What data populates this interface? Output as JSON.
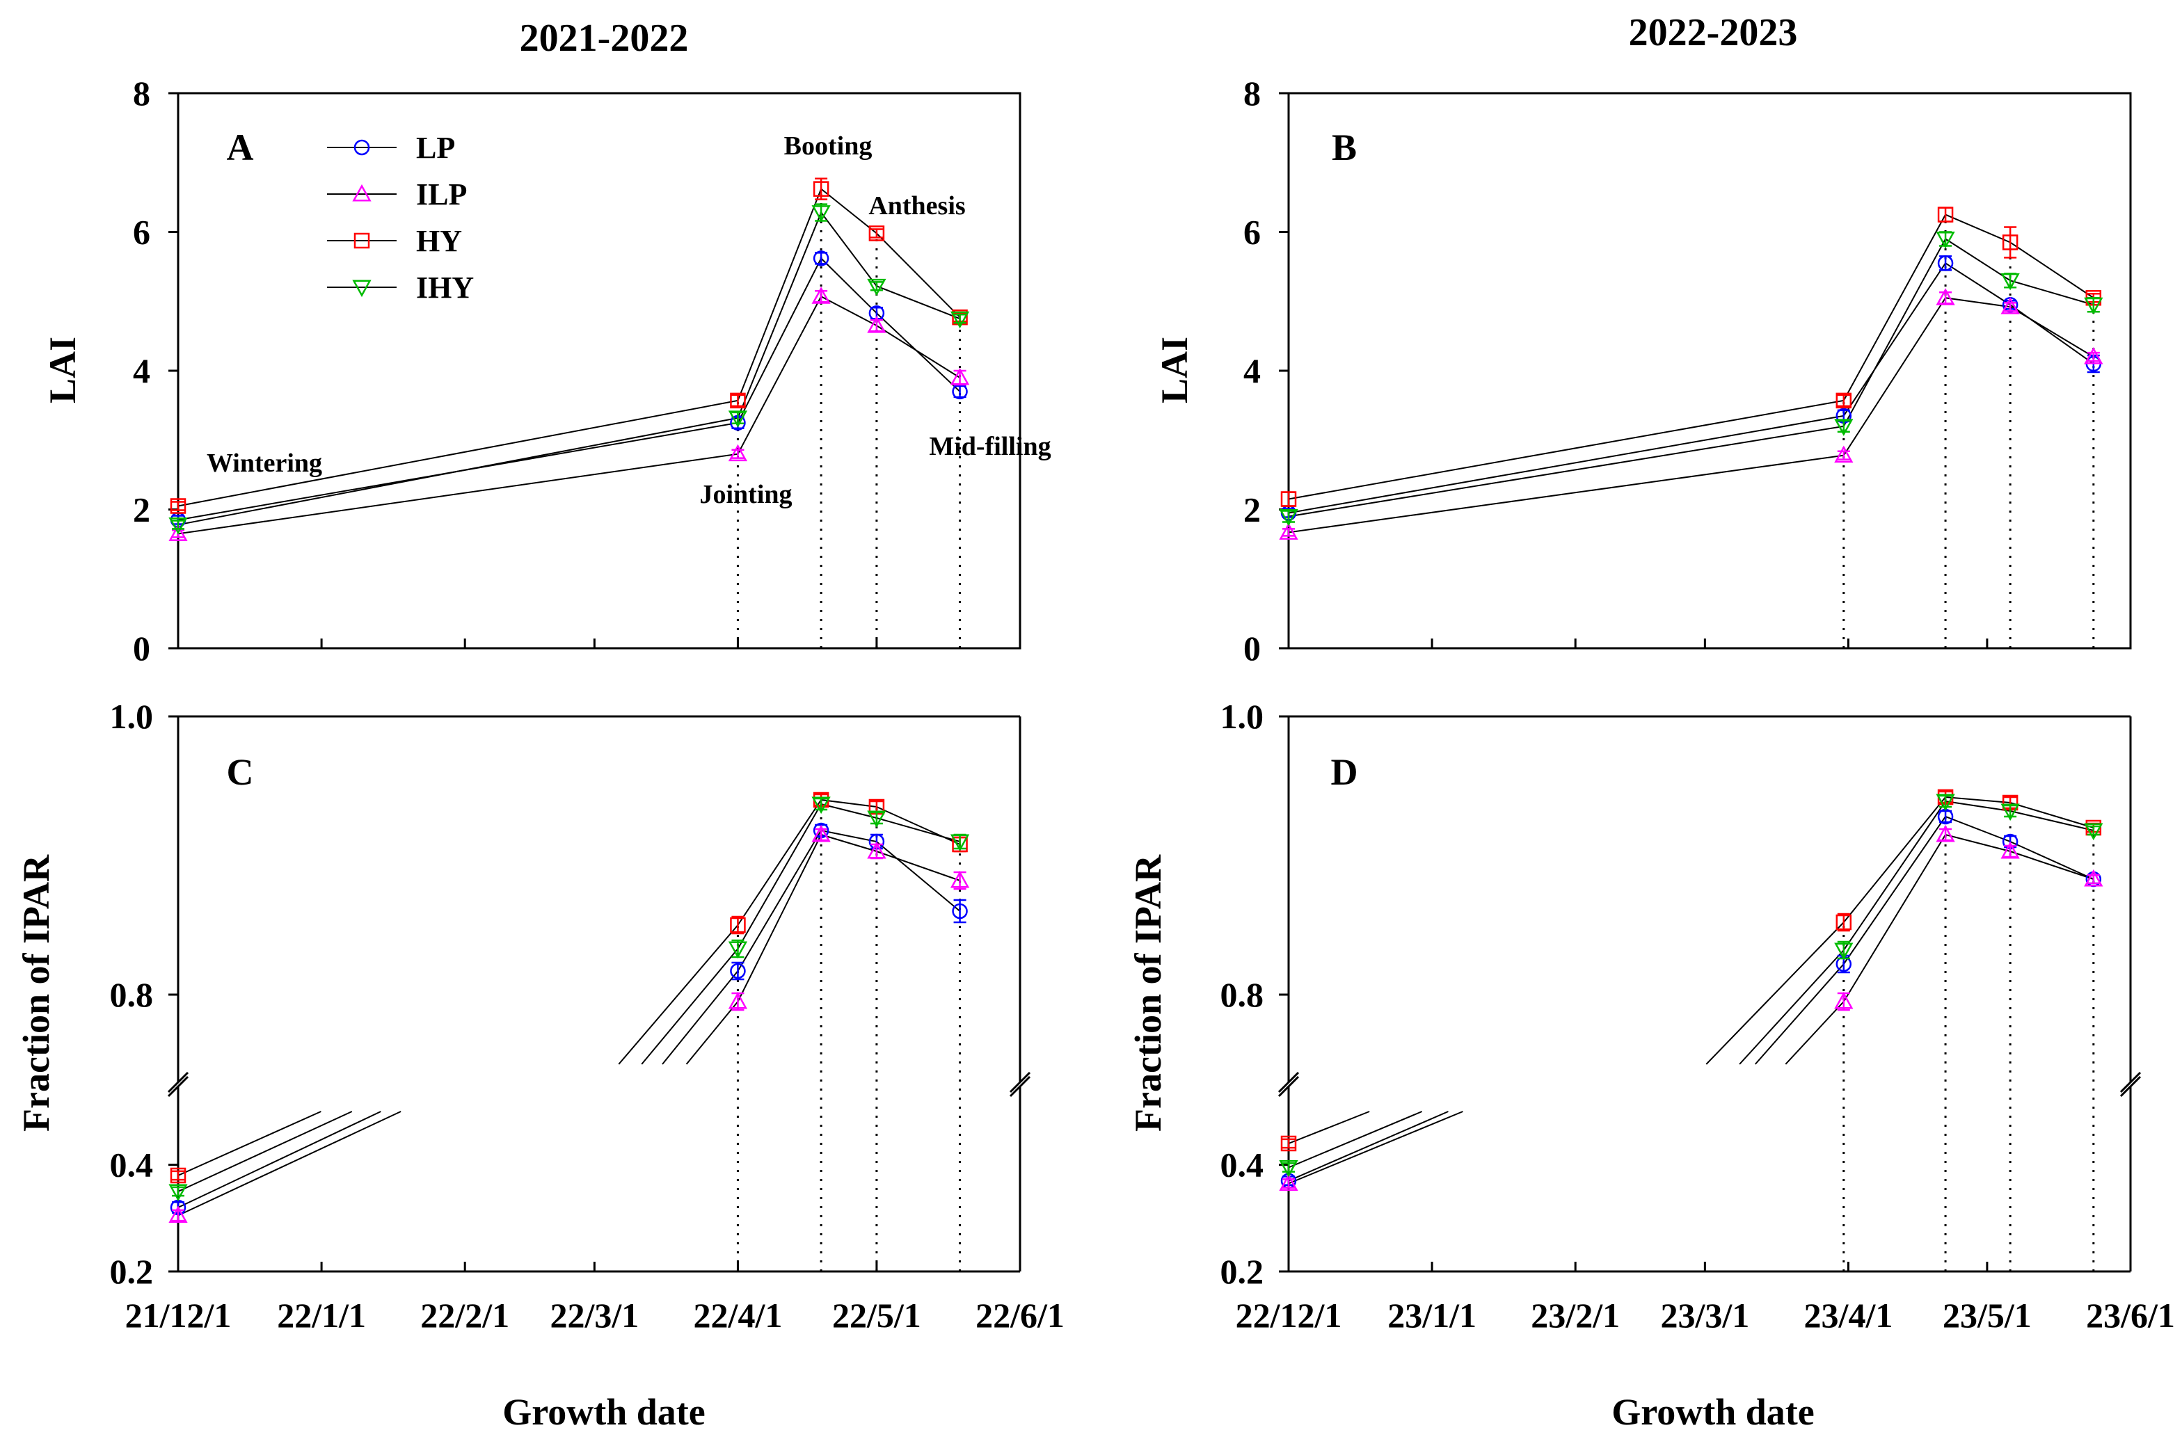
{
  "figure": {
    "titles": [
      "2021-2022",
      "2022-2023"
    ],
    "xlabel": "Growth date",
    "y_top_label": "LAI",
    "y_bottom_label": "Fraction of IPAR"
  },
  "legend": [
    {
      "name": "LP",
      "color": "#0000ff",
      "marker": "circle"
    },
    {
      "name": "ILP",
      "color": "#ff00ff",
      "marker": "triangle-up"
    },
    {
      "name": "HY",
      "color": "#ff0000",
      "marker": "square"
    },
    {
      "name": "IHY",
      "color": "#00bb00",
      "marker": "triangle-down"
    }
  ],
  "chart_data": [
    {
      "panel": "A",
      "type": "line",
      "season": "2021-2022",
      "ylabel": "LAI",
      "ylim": [
        0,
        8
      ],
      "yticks": [
        0,
        2,
        4,
        6,
        8
      ],
      "xlim": [
        "2021-12-01",
        "2022-06-01"
      ],
      "xticks": [
        "2021-12-01",
        "2022-01-01",
        "2022-02-01",
        "2022-03-01",
        "2022-04-01",
        "2022-05-01",
        "2022-06-01"
      ],
      "xticklabels": [
        "21/12/1",
        "22/1/1",
        "22/2/1",
        "22/3/1",
        "22/4/1",
        "22/5/1",
        "22/6/1"
      ],
      "x": [
        "2021-12-01",
        "2022-04-01",
        "2022-04-19",
        "2022-05-01",
        "2022-05-19"
      ],
      "annotations": [
        {
          "text": "Wintering",
          "x": "2021-12-01"
        },
        {
          "text": "Jointing",
          "x": "2022-04-01"
        },
        {
          "text": "Booting",
          "x": "2022-04-19"
        },
        {
          "text": "Anthesis",
          "x": "2022-05-01"
        },
        {
          "text": "Mid-filling",
          "x": "2022-05-19"
        }
      ],
      "series": [
        {
          "name": "LP",
          "values": [
            1.85,
            3.25,
            5.62,
            4.83,
            3.7
          ],
          "errors": [
            0.06,
            0.08,
            0.08,
            0.08,
            0.08
          ]
        },
        {
          "name": "ILP",
          "values": [
            1.65,
            2.8,
            5.07,
            4.65,
            3.9
          ],
          "errors": [
            0.05,
            0.06,
            0.08,
            0.08,
            0.1
          ]
        },
        {
          "name": "HY",
          "values": [
            2.05,
            3.57,
            6.62,
            5.98,
            4.77
          ],
          "errors": [
            0.06,
            0.08,
            0.15,
            0.06,
            0.06
          ]
        },
        {
          "name": "IHY",
          "values": [
            1.78,
            3.32,
            6.28,
            5.22,
            4.75
          ],
          "errors": [
            0.06,
            0.08,
            0.12,
            0.06,
            0.06
          ]
        }
      ]
    },
    {
      "panel": "B",
      "type": "line",
      "season": "2022-2023",
      "ylabel": "LAI",
      "ylim": [
        0,
        8
      ],
      "yticks": [
        0,
        2,
        4,
        6,
        8
      ],
      "xlim": [
        "2022-12-01",
        "2023-06-01"
      ],
      "xticks": [
        "2022-12-01",
        "2023-01-01",
        "2023-02-01",
        "2023-03-01",
        "2023-04-01",
        "2023-05-01",
        "2023-06-01"
      ],
      "xticklabels": [
        "22/12/1",
        "23/1/1",
        "23/2/1",
        "23/3/1",
        "23/4/1",
        "23/5/1",
        "23/6/1"
      ],
      "x": [
        "2022-12-01",
        "2023-03-31",
        "2023-04-22",
        "2023-05-06",
        "2023-05-24"
      ],
      "series": [
        {
          "name": "LP",
          "values": [
            1.95,
            3.35,
            5.55,
            4.95,
            4.1
          ],
          "errors": [
            0.06,
            0.08,
            0.1,
            0.06,
            0.12
          ]
        },
        {
          "name": "ILP",
          "values": [
            1.67,
            2.78,
            5.05,
            4.92,
            4.2
          ],
          "errors": [
            0.05,
            0.06,
            0.08,
            0.06,
            0.06
          ]
        },
        {
          "name": "HY",
          "values": [
            2.15,
            3.57,
            6.25,
            5.85,
            5.05
          ],
          "errors": [
            0.1,
            0.08,
            0.1,
            0.22,
            0.06
          ]
        },
        {
          "name": "IHY",
          "values": [
            1.9,
            3.2,
            5.9,
            5.3,
            4.95
          ],
          "errors": [
            0.08,
            0.08,
            0.1,
            0.1,
            0.1
          ]
        }
      ]
    },
    {
      "panel": "C",
      "type": "line",
      "season": "2021-2022",
      "ylabel": "Fraction of IPAR",
      "broken_axis": true,
      "ylim_lower": [
        0.2,
        0.5
      ],
      "yticks_lower": [
        0.2,
        0.4
      ],
      "ylim_upper": [
        0.75,
        1.0
      ],
      "yticks_upper": [
        0.8,
        1.0
      ],
      "xlim": [
        "2021-12-01",
        "2022-06-01"
      ],
      "xticks": [
        "2021-12-01",
        "2022-01-01",
        "2022-02-01",
        "2022-03-01",
        "2022-04-01",
        "2022-05-01",
        "2022-06-01"
      ],
      "xticklabels": [
        "21/12/1",
        "22/1/1",
        "22/2/1",
        "22/3/1",
        "22/4/1",
        "22/5/1",
        "22/6/1"
      ],
      "x": [
        "2021-12-01",
        "2022-04-01",
        "2022-04-19",
        "2022-05-01",
        "2022-05-19"
      ],
      "series": [
        {
          "name": "LP",
          "values": [
            0.32,
            0.817,
            0.918,
            0.91,
            0.86
          ],
          "errors": [
            0.01,
            0.006,
            0.004,
            0.005,
            0.008
          ]
        },
        {
          "name": "ILP",
          "values": [
            0.305,
            0.795,
            0.915,
            0.903,
            0.882
          ],
          "errors": [
            0.01,
            0.006,
            0.004,
            0.005,
            0.006
          ]
        },
        {
          "name": "HY",
          "values": [
            0.38,
            0.85,
            0.94,
            0.935,
            0.908
          ],
          "errors": [
            0.008,
            0.006,
            0.004,
            0.004,
            0.005
          ]
        },
        {
          "name": "IHY",
          "values": [
            0.35,
            0.833,
            0.937,
            0.927,
            0.91
          ],
          "errors": [
            0.008,
            0.006,
            0.004,
            0.004,
            0.005
          ]
        }
      ]
    },
    {
      "panel": "D",
      "type": "line",
      "season": "2022-2023",
      "ylabel": "Fraction of IPAR",
      "broken_axis": true,
      "ylim_lower": [
        0.2,
        0.5
      ],
      "yticks_lower": [
        0.2,
        0.4
      ],
      "ylim_upper": [
        0.75,
        1.0
      ],
      "yticks_upper": [
        0.8,
        1.0
      ],
      "xlim": [
        "2022-12-01",
        "2023-06-01"
      ],
      "xticks": [
        "2022-12-01",
        "2023-01-01",
        "2023-02-01",
        "2023-03-01",
        "2023-04-01",
        "2023-05-01",
        "2023-06-01"
      ],
      "xticklabels": [
        "22/12/1",
        "23/1/1",
        "23/2/1",
        "23/3/1",
        "23/4/1",
        "23/5/1",
        "23/6/1"
      ],
      "x": [
        "2022-12-01",
        "2023-03-31",
        "2023-04-22",
        "2023-05-06",
        "2023-05-24"
      ],
      "series": [
        {
          "name": "LP",
          "values": [
            0.37,
            0.822,
            0.928,
            0.91,
            0.883
          ],
          "errors": [
            0.008,
            0.006,
            0.004,
            0.004,
            0.003
          ]
        },
        {
          "name": "ILP",
          "values": [
            0.365,
            0.795,
            0.915,
            0.903,
            0.883
          ],
          "errors": [
            0.008,
            0.006,
            0.004,
            0.004,
            0.003
          ]
        },
        {
          "name": "HY",
          "values": [
            0.44,
            0.852,
            0.942,
            0.938,
            0.92
          ],
          "errors": [
            0.008,
            0.006,
            0.004,
            0.004,
            0.003
          ]
        },
        {
          "name": "IHY",
          "values": [
            0.395,
            0.832,
            0.939,
            0.932,
            0.918
          ],
          "errors": [
            0.008,
            0.006,
            0.004,
            0.004,
            0.003
          ]
        }
      ]
    }
  ]
}
